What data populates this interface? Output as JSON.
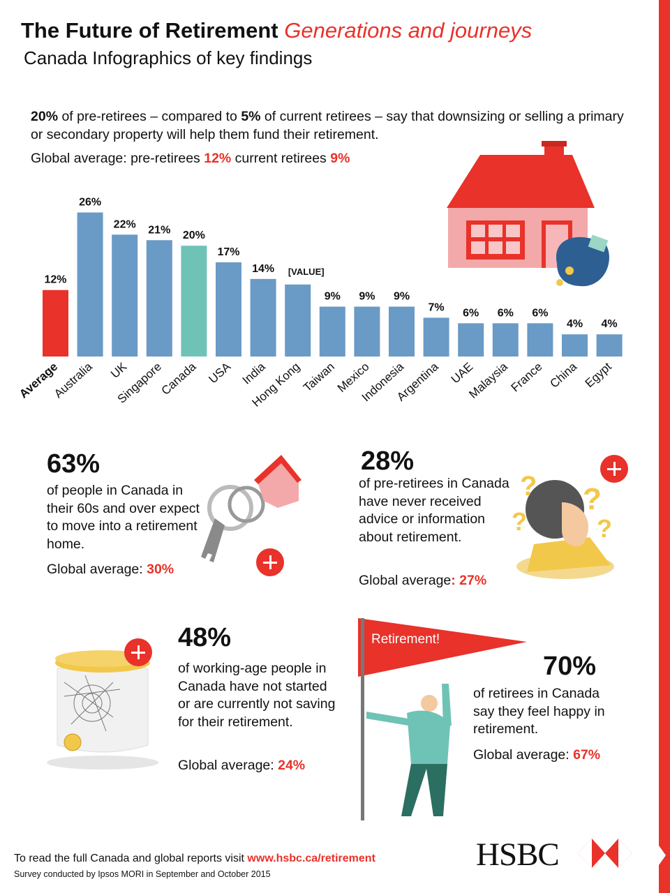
{
  "header": {
    "title": "The Future of Retirement",
    "title_sub": "Generations and journeys",
    "subtitle": "Canada Infographics of key findings"
  },
  "intro": {
    "pre_value": "20%",
    "pre_text": " of pre-retirees – compared to ",
    "cur_value": "5%",
    "post_text": " of current retirees – say that downsizing or selling a primary or secondary property will help them fund their retirement.",
    "global_label": "Global average: pre-retirees ",
    "global_pre": "12%",
    "global_mid": "  current retirees ",
    "global_cur": "9%"
  },
  "chart_data": {
    "type": "bar",
    "categories": [
      "Average",
      "Australia",
      "UK",
      "Singapore",
      "Canada",
      "USA",
      "India",
      "Hong Kong",
      "Taiwan",
      "Mexico",
      "Indonesia",
      "Argentina",
      "UAE",
      "Malaysia",
      "France",
      "China",
      "Egypt"
    ],
    "values": [
      12,
      26,
      22,
      21,
      20,
      17,
      14,
      13,
      9,
      9,
      9,
      7,
      6,
      6,
      6,
      4,
      4
    ],
    "data_labels": [
      "12%",
      "26%",
      "22%",
      "21%",
      "20%",
      "17%",
      "14%",
      "[VALUE]",
      "9%",
      "9%",
      "9%",
      "7%",
      "6%",
      "6%",
      "6%",
      "4%",
      "4%"
    ],
    "colors": {
      "average": "#e8322a",
      "highlight": "#6fc3b6",
      "default": "#6a9ac6"
    },
    "highlight_category": "Canada",
    "ylim": [
      0,
      26
    ]
  },
  "stats": [
    {
      "value": "63%",
      "text": "of people in Canada in their 60s and over expect to move into a retirement home.",
      "global_label": "Global average: ",
      "global_value": "30%"
    },
    {
      "value": "28%",
      "text": "of pre-retirees in Canada have never received advice or information about retirement.",
      "global_label": "Global average",
      "global_value": ": 27%"
    },
    {
      "value": "48%",
      "text": "of working-age people in Canada have not started or are currently not saving for their retirement.",
      "global_label": "Global average: ",
      "global_value": "24%"
    },
    {
      "value": "70%",
      "text": "of retirees in Canada say they feel happy in retirement.",
      "global_label": "Global average: ",
      "global_value": "67%"
    }
  ],
  "flag_text": "Retirement!",
  "footer": {
    "visit_text": "To read the full Canada and global reports visit ",
    "link": "www.hsbc.ca/retirement",
    "survey": "Survey conducted by Ipsos MORI in September and October 2015"
  },
  "brand": {
    "name": "HSBC",
    "red": "#e8322a"
  }
}
